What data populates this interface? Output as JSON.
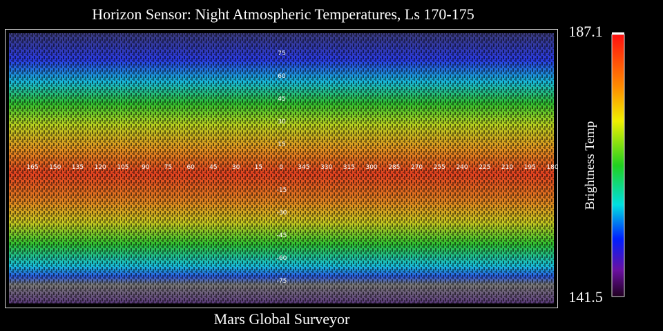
{
  "title": "Horizon Sensor:  Night Atmospheric Temperatures, Ls 170-175",
  "footer": "Mars Global Surveyor",
  "colorbar": {
    "label": "Brightness Temp",
    "max": "187.1",
    "min": "141.5"
  },
  "map": {
    "longitudes": [
      "165",
      "150",
      "135",
      "120",
      "105",
      "90",
      "75",
      "60",
      "45",
      "30",
      "15",
      "0",
      "345",
      "330",
      "315",
      "300",
      "285",
      "270",
      "255",
      "240",
      "225",
      "210",
      "195",
      "180"
    ],
    "latitudes": [
      "75",
      "60",
      "45",
      "30",
      "15",
      "-15",
      "-30",
      "-45",
      "-60",
      "-75"
    ]
  }
}
